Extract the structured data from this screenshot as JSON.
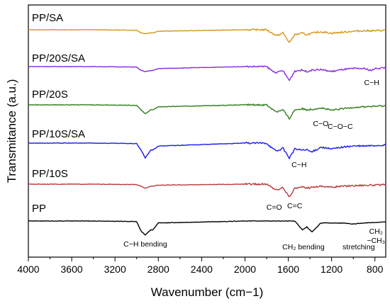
{
  "chart_data": {
    "type": "line",
    "title": "",
    "xlabel": "Wavenumber (cm−1)",
    "ylabel": "Transmitance (a.u.)",
    "xlim": [
      4000,
      700
    ],
    "x_reversed": true,
    "x_ticks": [
      4000,
      3600,
      3200,
      2800,
      2400,
      2000,
      1600,
      1200,
      800
    ],
    "y_ticks_shown": false,
    "grid": false,
    "legend": "none",
    "series": [
      {
        "name": "PP/SA",
        "color": "#d4961e",
        "x": [
          4000,
          3400,
          3000,
          2960,
          2920,
          2870,
          2850,
          2800,
          2000,
          1800,
          1740,
          1700,
          1650,
          1590,
          1540,
          1470,
          1430,
          1380,
          1300,
          1200,
          1100,
          1000,
          900,
          800,
          700
        ],
        "y": [
          0,
          0,
          -0.5,
          -3,
          -4,
          -3,
          -3,
          -1.5,
          0,
          0,
          -4,
          -6,
          -3,
          -13,
          -5,
          -3.5,
          -5,
          -3.5,
          -2,
          -3.5,
          -2.5,
          -1.5,
          -1,
          -1,
          -0.5
        ]
      },
      {
        "name": "PP/20S/SA",
        "color": "#8a2be2",
        "x": [
          4000,
          3400,
          3000,
          2960,
          2920,
          2870,
          2850,
          2800,
          2000,
          1800,
          1740,
          1700,
          1650,
          1590,
          1540,
          1470,
          1430,
          1380,
          1300,
          1200,
          1100,
          1000,
          900,
          830,
          800,
          700
        ],
        "y": [
          0,
          0,
          -0.5,
          -4,
          -5,
          -4,
          -4,
          -2,
          0,
          0,
          -5,
          -6,
          -4,
          -14,
          -4.5,
          -3.5,
          -5,
          -3.5,
          -3,
          -5,
          -3,
          -2,
          -2,
          -4,
          -2,
          -1
        ]
      },
      {
        "name": "PP/20S",
        "color": "#2e7d1a",
        "x": [
          4000,
          3400,
          3000,
          2960,
          2920,
          2870,
          2850,
          2800,
          2000,
          1800,
          1740,
          1700,
          1650,
          1590,
          1540,
          1470,
          1430,
          1380,
          1300,
          1200,
          1100,
          1000,
          900,
          800,
          700
        ],
        "y": [
          0,
          0,
          -0.5,
          -5,
          -9,
          -5,
          -5,
          -2,
          0,
          0,
          -5,
          -7,
          -5,
          -14,
          -5,
          -4,
          -5,
          -4.5,
          -3,
          -5.5,
          -4,
          -2.5,
          -2,
          -1.5,
          -1
        ]
      },
      {
        "name": "PP/10S/SA",
        "color": "#1a1aee",
        "x": [
          4000,
          3400,
          3000,
          2960,
          2920,
          2870,
          2850,
          2800,
          2000,
          1800,
          1740,
          1700,
          1650,
          1590,
          1540,
          1470,
          1430,
          1380,
          1300,
          1200,
          1100,
          1000,
          900,
          800,
          700
        ],
        "y": [
          0,
          0,
          -0.5,
          -7,
          -15,
          -7,
          -7,
          -3,
          0,
          0,
          -6,
          -8,
          -5,
          -15,
          -6,
          -7,
          -7,
          -9,
          -4,
          -6,
          -4,
          -3,
          -3,
          -2.5,
          -2
        ]
      },
      {
        "name": "PP/10S",
        "color": "#b83a3a",
        "x": [
          4000,
          3400,
          3000,
          2960,
          2920,
          2870,
          2850,
          2800,
          2000,
          1800,
          1740,
          1700,
          1650,
          1590,
          1540,
          1470,
          1430,
          1380,
          1300,
          1200,
          1100,
          1000,
          900,
          800,
          700
        ],
        "y": [
          0,
          0,
          -0.5,
          -2,
          -4,
          -2,
          -2,
          -1,
          0,
          0,
          -4,
          -6,
          -3,
          -13,
          -4,
          -3,
          -4,
          -3,
          -2,
          -3,
          -2,
          -1.5,
          -1,
          -1,
          -0.5
        ]
      },
      {
        "name": "PP",
        "color": "#000000",
        "x": [
          4000,
          3400,
          3000,
          2960,
          2920,
          2870,
          2850,
          2800,
          2000,
          1800,
          1740,
          1700,
          1650,
          1590,
          1540,
          1470,
          1430,
          1380,
          1300,
          1200,
          1100,
          1000,
          900,
          800,
          700
        ],
        "y": [
          0,
          0,
          -0.5,
          -10,
          -14,
          -9,
          -9,
          -2,
          0,
          0,
          0,
          0,
          0,
          0,
          0,
          -9,
          -6,
          -11,
          -2,
          -2,
          -2,
          -3,
          -2,
          -1.5,
          -1
        ]
      }
    ],
    "annotations": [
      {
        "text": "C−H",
        "x": 830
      },
      {
        "text": "C−O",
        "x": 1300
      },
      {
        "text": "C−O−C",
        "x": 1120
      },
      {
        "text": "C−H",
        "x": 1500
      },
      {
        "text": "C=O",
        "x": 1730
      },
      {
        "text": "C=C",
        "x": 1540
      },
      {
        "text": "C−H bending",
        "x": 2920
      },
      {
        "text": "CH₂ bending",
        "x": 1460
      },
      {
        "text": "stretching",
        "x": 950
      },
      {
        "text": "CH₂",
        "x": 790
      },
      {
        "text": "−CH₃",
        "x": 790
      }
    ]
  }
}
